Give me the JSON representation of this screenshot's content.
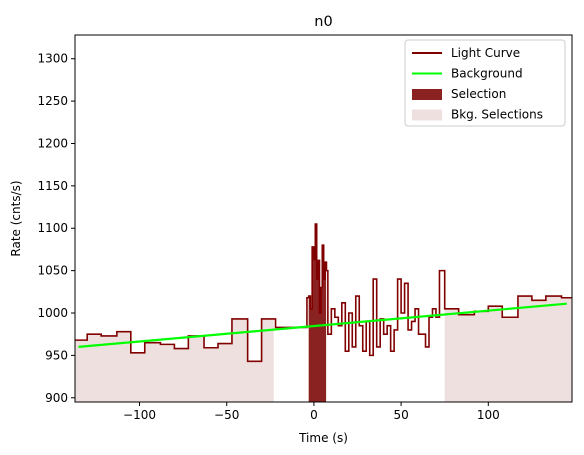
{
  "chart_data": {
    "type": "line",
    "title": "n0",
    "xlabel": "Time (s)",
    "ylabel": "Rate (cnts/s)",
    "xlim": [
      -137,
      148
    ],
    "ylim": [
      895,
      1328
    ],
    "xticks": [
      -100,
      -50,
      0,
      50,
      100
    ],
    "xtick_labels": [
      "−100",
      "−50",
      "0",
      "50",
      "100"
    ],
    "yticks": [
      900,
      950,
      1000,
      1050,
      1100,
      1150,
      1200,
      1250,
      1300
    ],
    "ytick_labels": [
      "900",
      "950",
      "1000",
      "1050",
      "1100",
      "1150",
      "1200",
      "1250",
      "1300"
    ],
    "grid": false,
    "legend_position": "top-right",
    "colors": {
      "light_curve": "#800000",
      "background": "#00ff00",
      "selection": "#8b2222",
      "bkg_selection": "#efe0e0"
    },
    "series": [
      {
        "name": "Light Curve",
        "kind": "step",
        "x": [
          -137,
          -130,
          -122,
          -113,
          -105,
          -97,
          -88,
          -80,
          -72,
          -63,
          -55,
          -47,
          -38,
          -30,
          -22,
          -4,
          -3,
          -2,
          -1,
          0,
          0.8,
          1.6,
          2.4,
          3.2,
          4,
          4.8,
          5.6,
          6.4,
          7.2,
          8,
          10,
          12,
          14,
          16,
          18,
          20,
          22,
          24,
          26,
          28,
          30,
          32,
          34,
          36,
          38,
          40,
          42,
          44,
          46,
          48,
          50,
          52,
          54,
          56,
          58,
          60,
          62,
          64,
          66,
          68,
          70,
          72,
          75,
          83,
          92,
          100,
          108,
          117,
          125,
          133,
          142,
          148
        ],
        "y": [
          968,
          975,
          973,
          978,
          953,
          965,
          963,
          958,
          973,
          959,
          964,
          993,
          943,
          993,
          983,
          1018,
          1020,
          1005,
          1078,
          1063,
          1105,
          1040,
          1062,
          1000,
          1030,
          1080,
          1040,
          1060,
          1050,
          975,
          1005,
          995,
          985,
          1012,
          955,
          1000,
          960,
          1020,
          985,
          955,
          990,
          950,
          1040,
          960,
          993,
          975,
          985,
          955,
          980,
          1040,
          1000,
          1035,
          980,
          990,
          1005,
          975,
          975,
          960,
          995,
          1005,
          995,
          1050,
          1005,
          998,
          1002,
          1008,
          995,
          1020,
          1015,
          1020,
          1018,
          1018
        ]
      },
      {
        "name": "Background",
        "kind": "line",
        "x": [
          -135,
          145
        ],
        "y": [
          960,
          1011
        ]
      }
    ],
    "regions": [
      {
        "name": "Selection",
        "x": [
          -3,
          7
        ]
      },
      {
        "name": "Bkg. Selections",
        "x": [
          -137,
          -23
        ]
      },
      {
        "name": "Bkg. Selections",
        "x": [
          75,
          148
        ]
      }
    ]
  }
}
